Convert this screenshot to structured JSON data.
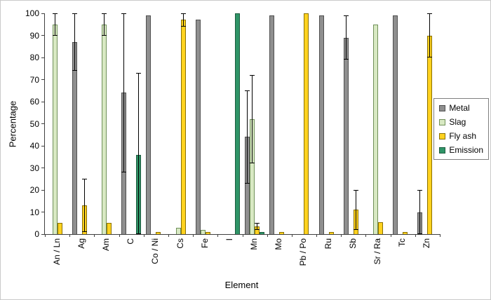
{
  "chart_data": {
    "type": "bar",
    "title": "",
    "xlabel": "Element",
    "ylabel": "Percentage",
    "ylim": [
      0,
      100
    ],
    "ytick_step": 10,
    "grid": false,
    "legend_position": "right",
    "categories": [
      "An / Ln",
      "Ag",
      "Am",
      "C",
      "Co / Ni",
      "Cs",
      "Fe",
      "I",
      "Mn",
      "Mo",
      "Pb / Po",
      "Ru",
      "Sb",
      "Sr / Ra",
      "Tc",
      "Zn"
    ],
    "series": [
      {
        "name": "Metal",
        "color": "#8f8f8f",
        "border": "#4f4f4f",
        "values": [
          0,
          87,
          0,
          64,
          99,
          0,
          97,
          0,
          44,
          99,
          0,
          99,
          89,
          0,
          99,
          10
        ],
        "errors": [
          0,
          13,
          0,
          36,
          0,
          0,
          0,
          0,
          21,
          0,
          0,
          0,
          10,
          0,
          0,
          10
        ]
      },
      {
        "name": "Slag",
        "color": "#d8e9c3",
        "border": "#70905a",
        "values": [
          95,
          0,
          95,
          0,
          0,
          3,
          2,
          0,
          52,
          0,
          0,
          0,
          0,
          95,
          0,
          0
        ],
        "errors": [
          5,
          0,
          5,
          0,
          0,
          0,
          0,
          0,
          20,
          0,
          0,
          0,
          0,
          0,
          0,
          0
        ]
      },
      {
        "name": "Fly ash",
        "color": "#ffd21f",
        "border": "#8a7000",
        "values": [
          5,
          13,
          5,
          0,
          1,
          97,
          1,
          0,
          3.5,
          1,
          100,
          1,
          11,
          5.5,
          1,
          90
        ],
        "errors": [
          0,
          12,
          0,
          0,
          0,
          3,
          0,
          0,
          1.5,
          0,
          0,
          0,
          9,
          0,
          0,
          10
        ]
      },
      {
        "name": "Emission",
        "color": "#2f9467",
        "border": "#1d5c3f",
        "values": [
          0,
          0,
          0,
          36,
          0,
          0,
          0,
          100,
          1,
          0,
          0,
          0,
          0,
          0,
          0,
          0
        ],
        "errors": [
          0,
          0,
          0,
          37,
          0,
          0,
          0,
          0,
          0,
          0,
          0,
          0,
          0,
          0,
          0,
          0
        ]
      }
    ]
  }
}
